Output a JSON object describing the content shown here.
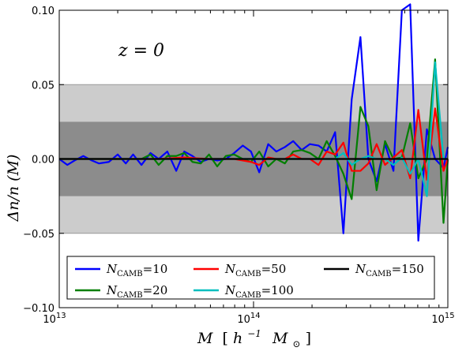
{
  "chart_data": {
    "type": "line",
    "xscale": "log",
    "xlim": [
      10000000000000.0,
      1000000000000000.0
    ],
    "ylim": [
      -0.1,
      0.1
    ],
    "x_ticks": [
      {
        "value": 10000000000000.0,
        "base": "10",
        "exp": "13"
      },
      {
        "value": 100000000000000.0,
        "base": "10",
        "exp": "14"
      },
      {
        "value": 1000000000000000.0,
        "base": "10",
        "exp": "15"
      }
    ],
    "y_ticks": [
      {
        "value": -0.1,
        "label": "−0.10"
      },
      {
        "value": -0.05,
        "label": "−0.05"
      },
      {
        "value": 0.0,
        "label": "0.00"
      },
      {
        "value": 0.05,
        "label": "0.05"
      },
      {
        "value": 0.1,
        "label": "0.10"
      }
    ],
    "bands": [
      {
        "ymin": -0.05,
        "ymax": 0.05,
        "color": "#cccccc"
      },
      {
        "ymin": -0.025,
        "ymax": 0.025,
        "color": "#8c8c8c"
      }
    ],
    "xlabel": {
      "main": "M",
      "bracket_open": "[",
      "h": "h",
      "h_exp": "−1",
      "msun": "M",
      "sun_sub": "⊙",
      "bracket_close": "]"
    },
    "ylabel": "Δn/n (M)",
    "annotation": "z = 0",
    "legend_position": "lower center",
    "series": [
      {
        "name": "N_CAMB=10",
        "legend_main": "N",
        "legend_sub": "CAMB",
        "legend_value": "=10",
        "color": "#0000ff",
        "x": [
          10000000000000.0,
          11000000000000.0,
          12000000000000.0,
          13300000000000.0,
          14700000000000.0,
          16000000000000.0,
          18000000000000.0,
          20000000000000.0,
          22000000000000.0,
          24000000000000.0,
          26500000000000.0,
          29500000000000.0,
          32500000000000.0,
          36000000000000.0,
          40000000000000.0,
          44000000000000.0,
          48500000000000.0,
          53500000000000.0,
          59000000000000.0,
          65000000000000.0,
          72000000000000.0,
          79500000000000.0,
          88000000000000.0,
          97000000000000.0,
          107000000000000.0,
          119000000000000.0,
          131000000000000.0,
          145000000000000.0,
          160000000000000.0,
          177000000000000.0,
          195000000000000.0,
          216000000000000.0,
          238000000000000.0,
          263000000000000.0,
          290000000000000.0,
          320000000000000.0,
          355000000000000.0,
          390000000000000.0,
          430000000000000.0,
          475000000000000.0,
          525000000000000.0,
          580000000000000.0,
          640000000000000.0,
          705000000000000.0,
          780000000000000.0,
          860000000000000.0,
          950000000000000.0,
          1000000000000000.0
        ],
        "y": [
          0.0,
          -0.004,
          -0.001,
          0.002,
          -0.001,
          -0.003,
          -0.002,
          0.003,
          -0.003,
          0.003,
          -0.004,
          0.004,
          0.0,
          0.005,
          -0.008,
          0.005,
          0.002,
          -0.002,
          0.0,
          -0.001,
          0.0,
          0.004,
          0.009,
          0.005,
          -0.009,
          0.01,
          0.005,
          0.008,
          0.012,
          0.006,
          0.01,
          0.009,
          0.005,
          0.018,
          -0.05,
          0.04,
          0.082,
          0.0,
          -0.015,
          0.01,
          -0.008,
          0.1,
          0.104,
          -0.055,
          0.02,
          0.0,
          -0.006,
          0.008
        ]
      },
      {
        "name": "N_CAMB=20",
        "legend_main": "N",
        "legend_sub": "CAMB",
        "legend_value": "=20",
        "color": "#007f00",
        "x": [
          10000000000000.0,
          12000000000000.0,
          14700000000000.0,
          18000000000000.0,
          22000000000000.0,
          26500000000000.0,
          29500000000000.0,
          32500000000000.0,
          36000000000000.0,
          40000000000000.0,
          44000000000000.0,
          48500000000000.0,
          53500000000000.0,
          59000000000000.0,
          65000000000000.0,
          72000000000000.0,
          79500000000000.0,
          88000000000000.0,
          97000000000000.0,
          107000000000000.0,
          119000000000000.0,
          131000000000000.0,
          145000000000000.0,
          160000000000000.0,
          177000000000000.0,
          195000000000000.0,
          216000000000000.0,
          238000000000000.0,
          263000000000000.0,
          290000000000000.0,
          320000000000000.0,
          355000000000000.0,
          390000000000000.0,
          430000000000000.0,
          475000000000000.0,
          525000000000000.0,
          580000000000000.0,
          640000000000000.0,
          705000000000000.0,
          780000000000000.0,
          860000000000000.0,
          950000000000000.0,
          1000000000000000.0
        ],
        "y": [
          0.0,
          0.0,
          0.0,
          0.0,
          0.0,
          0.0,
          0.003,
          -0.004,
          0.002,
          0.002,
          0.004,
          -0.002,
          -0.003,
          0.003,
          -0.005,
          0.002,
          0.003,
          0.0,
          -0.002,
          0.005,
          -0.005,
          0.0,
          -0.003,
          0.005,
          0.006,
          0.004,
          0.0,
          0.012,
          0.002,
          -0.01,
          -0.027,
          0.035,
          0.022,
          -0.021,
          0.012,
          0.0,
          0.001,
          0.024,
          -0.013,
          0.0,
          0.067,
          -0.043,
          0.0
        ]
      },
      {
        "name": "N_CAMB=50",
        "legend_main": "N",
        "legend_sub": "CAMB",
        "legend_value": "=50",
        "color": "#ff0000",
        "x": [
          10000000000000.0,
          14700000000000.0,
          22000000000000.0,
          32500000000000.0,
          44000000000000.0,
          59000000000000.0,
          79500000000000.0,
          97000000000000.0,
          107000000000000.0,
          119000000000000.0,
          131000000000000.0,
          145000000000000.0,
          160000000000000.0,
          177000000000000.0,
          195000000000000.0,
          216000000000000.0,
          238000000000000.0,
          263000000000000.0,
          290000000000000.0,
          320000000000000.0,
          355000000000000.0,
          390000000000000.0,
          430000000000000.0,
          475000000000000.0,
          525000000000000.0,
          580000000000000.0,
          640000000000000.0,
          705000000000000.0,
          780000000000000.0,
          860000000000000.0,
          950000000000000.0,
          1000000000000000.0
        ],
        "y": [
          0.0,
          0.0,
          0.0,
          0.0,
          0.001,
          0.0,
          0.0,
          -0.002,
          -0.004,
          0.001,
          0.0,
          0.0,
          0.003,
          0.0,
          0.0,
          -0.004,
          0.005,
          0.003,
          0.011,
          -0.008,
          -0.008,
          -0.003,
          0.01,
          -0.004,
          0.001,
          0.006,
          -0.013,
          0.033,
          -0.014,
          0.034,
          -0.008,
          0.0
        ]
      },
      {
        "name": "N_CAMB=100",
        "legend_main": "N",
        "legend_sub": "CAMB",
        "legend_value": "=100",
        "color": "#00bfbf",
        "x": [
          10000000000000.0,
          22000000000000.0,
          44000000000000.0,
          79500000000000.0,
          119000000000000.0,
          160000000000000.0,
          216000000000000.0,
          263000000000000.0,
          290000000000000.0,
          320000000000000.0,
          355000000000000.0,
          390000000000000.0,
          430000000000000.0,
          475000000000000.0,
          525000000000000.0,
          580000000000000.0,
          640000000000000.0,
          705000000000000.0,
          780000000000000.0,
          860000000000000.0,
          950000000000000.0,
          1000000000000000.0
        ],
        "y": [
          0.0,
          0.0,
          0.0,
          0.0,
          0.0,
          0.0,
          0.0,
          0.0,
          0.004,
          -0.004,
          0.0,
          0.002,
          0.0,
          0.0,
          -0.004,
          0.001,
          -0.01,
          0.0,
          -0.025,
          0.065,
          0.0,
          0.0
        ]
      },
      {
        "name": "N_CAMB=150",
        "legend_main": "N",
        "legend_sub": "CAMB",
        "legend_value": "=150",
        "color": "#000000",
        "x": [
          10000000000000.0,
          1000000000000000.0
        ],
        "y": [
          0.0,
          0.0
        ]
      }
    ]
  }
}
